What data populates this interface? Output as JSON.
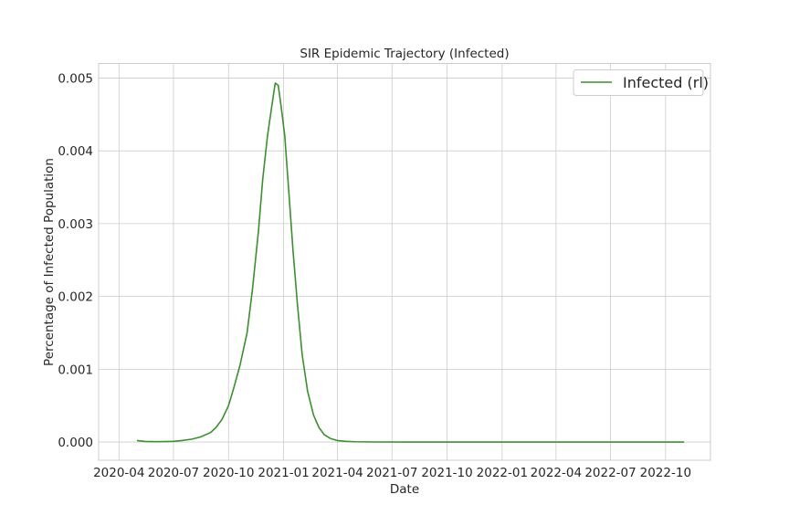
{
  "chart_data": {
    "type": "line",
    "title": "SIR Epidemic Trajectory (Infected)",
    "xlabel": "Date",
    "ylabel": "Percentage of Infected Population",
    "x_ticks": [
      "2020-04",
      "2020-07",
      "2020-10",
      "2021-01",
      "2021-04",
      "2021-07",
      "2021-10",
      "2022-01",
      "2022-04",
      "2022-07",
      "2022-10"
    ],
    "y_ticks": [
      "0.000",
      "0.001",
      "0.002",
      "0.003",
      "0.004",
      "0.005"
    ],
    "xlim": [
      "2020-02-27",
      "2022-12-15"
    ],
    "ylim": [
      -0.00025,
      0.0052
    ],
    "grid": true,
    "legend_position": "top-right",
    "colors": {
      "series": "#3c8f2e",
      "grid": "#cccccc"
    },
    "series": [
      {
        "name": "Infected (rl)",
        "x": [
          "2020-05-01",
          "2020-05-15",
          "2020-06-01",
          "2020-06-15",
          "2020-07-01",
          "2020-07-15",
          "2020-08-01",
          "2020-08-15",
          "2020-09-01",
          "2020-09-10",
          "2020-09-20",
          "2020-10-01",
          "2020-10-10",
          "2020-10-20",
          "2020-11-01",
          "2020-11-10",
          "2020-11-20",
          "2020-11-27",
          "2020-12-05",
          "2020-12-12",
          "2020-12-18",
          "2020-12-23",
          "2020-12-28",
          "2021-01-03",
          "2021-01-10",
          "2021-01-17",
          "2021-01-24",
          "2021-02-01",
          "2021-02-10",
          "2021-02-20",
          "2021-03-01",
          "2021-03-10",
          "2021-03-20",
          "2021-04-01",
          "2021-04-15",
          "2021-05-01",
          "2021-06-01",
          "2021-08-01",
          "2021-11-01",
          "2022-03-01",
          "2022-07-01",
          "2022-11-01"
        ],
        "y": [
          2e-05,
          8e-06,
          5e-06,
          6e-06,
          1e-05,
          2e-05,
          4e-05,
          7e-05,
          0.00013,
          0.0002,
          0.00031,
          0.0005,
          0.00075,
          0.00105,
          0.0015,
          0.0021,
          0.0029,
          0.0036,
          0.0042,
          0.0046,
          0.00493,
          0.0049,
          0.0046,
          0.0042,
          0.0034,
          0.0026,
          0.0019,
          0.0012,
          0.0007,
          0.00037,
          0.0002,
          0.0001,
          5e-05,
          2e-05,
          1e-05,
          4e-06,
          1e-06,
          0,
          0,
          0,
          0,
          0
        ]
      }
    ]
  }
}
